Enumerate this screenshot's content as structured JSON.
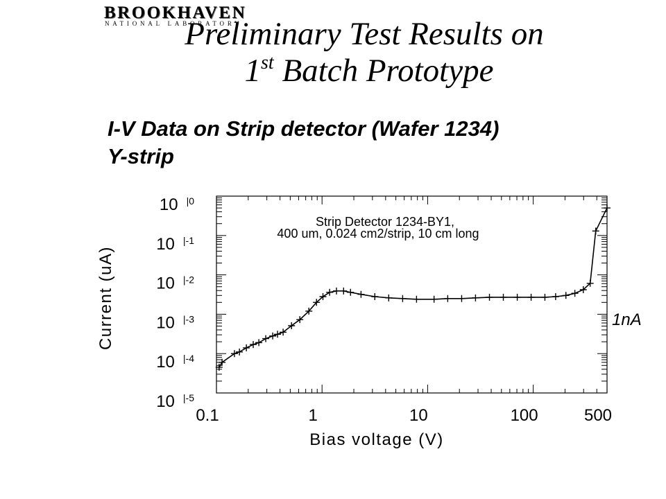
{
  "logo": {
    "name": "BROOKHAVEN",
    "subtitle": "NATIONAL LABORATORY"
  },
  "title": {
    "line1": "Preliminary Test Results on",
    "line2_num": "1",
    "line2_sup": "st",
    "line2_rest": " Batch Prototype"
  },
  "subtitle": "I-V Data on Strip detector (Wafer 1234)",
  "strip_label": "Y-strip",
  "chart_data": {
    "type": "line",
    "xlabel": "Bias voltage (V)",
    "ylabel": "Current (uA)",
    "xscale": "log",
    "yscale": "log",
    "xlim": [
      0.1,
      500
    ],
    "ylim": [
      1e-05,
      1
    ],
    "grid": false,
    "marker": "plus",
    "color": "#000000",
    "xticks": [
      {
        "value": 0.1,
        "label": "0.1"
      },
      {
        "value": 1,
        "label": "1"
      },
      {
        "value": 10,
        "label": "10"
      },
      {
        "value": 100,
        "label": "100"
      },
      {
        "value": 500,
        "label": "500"
      }
    ],
    "yticks": [
      {
        "value": 1,
        "base": "10",
        "exp": "|0"
      },
      {
        "value": 0.1,
        "base": "10",
        "exp": "|-1"
      },
      {
        "value": 0.01,
        "base": "10",
        "exp": "|-2"
      },
      {
        "value": 0.001,
        "base": "10",
        "exp": "|-3"
      },
      {
        "value": 0.0001,
        "base": "10",
        "exp": "|-4"
      },
      {
        "value": 1e-05,
        "base": "10",
        "exp": "|-5"
      }
    ],
    "annotations": [
      "Strip Detector 1234-BY1,",
      "400 um, 0.024 cm2/strip, 10 cm long",
      "1nA"
    ],
    "series": [
      {
        "x": [
          0.106,
          0.113,
          0.148,
          0.165,
          0.192,
          0.223,
          0.252,
          0.293,
          0.341,
          0.379,
          0.428,
          0.514,
          0.616,
          0.75,
          0.886,
          1.02,
          1.18,
          1.37,
          1.6,
          1.86,
          2.34,
          3.16,
          4.28,
          5.8,
          7.85,
          11.5,
          15.5,
          21,
          28.4,
          38.5,
          52.1,
          70.6,
          95.5,
          129,
          163,
          204,
          248,
          298,
          346,
          391,
          500
        ],
        "y": [
          4.5e-05,
          6e-05,
          0.0001,
          0.00011,
          0.00014,
          0.00017,
          0.00019,
          0.00024,
          0.00028,
          0.00031,
          0.00035,
          0.00051,
          0.00073,
          0.0012,
          0.002,
          0.0028,
          0.0036,
          0.0039,
          0.0039,
          0.0036,
          0.0032,
          0.0028,
          0.0026,
          0.0025,
          0.0024,
          0.0024,
          0.0025,
          0.0025,
          0.0026,
          0.0027,
          0.0027,
          0.0027,
          0.0027,
          0.0027,
          0.0028,
          0.003,
          0.0034,
          0.0042,
          0.0061,
          0.13,
          0.5
        ]
      }
    ]
  }
}
